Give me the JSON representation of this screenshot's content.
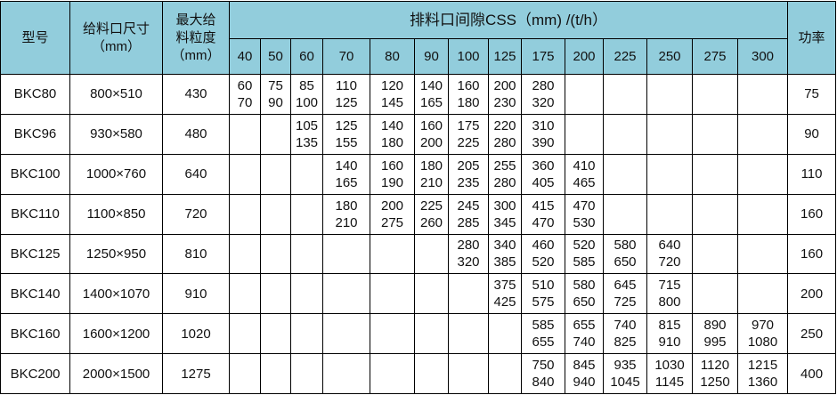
{
  "header": {
    "model": "型号",
    "feed_opening": "给料口尺寸",
    "feed_opening_unit": "（mm）",
    "max_feed": "最大给料粒度",
    "max_feed_unit": "（mm）",
    "css_caption": "排料口间隙CSS（mm) /(t/h）",
    "power": "功率",
    "css_values": [
      "40",
      "50",
      "60",
      "70",
      "80",
      "90",
      "100",
      "125",
      "175",
      "200",
      "225",
      "250",
      "275",
      "300"
    ]
  },
  "header_color": "#92CDDC",
  "rows": [
    {
      "model": "BKC80",
      "opening": "800×510",
      "max_feed": "430",
      "power": "75",
      "cells": [
        [
          "60",
          "70"
        ],
        [
          "75",
          "90"
        ],
        [
          "85",
          "100"
        ],
        [
          "110",
          "125"
        ],
        [
          "120",
          "145"
        ],
        [
          "140",
          "165"
        ],
        [
          "160",
          "180"
        ],
        [
          "200",
          "230"
        ],
        [
          "280",
          "320"
        ],
        null,
        null,
        null,
        null,
        null
      ]
    },
    {
      "model": "BKC96",
      "opening": "930×580",
      "max_feed": "480",
      "power": "90",
      "cells": [
        null,
        null,
        [
          "105",
          "135"
        ],
        [
          "125",
          "155"
        ],
        [
          "140",
          "180"
        ],
        [
          "160",
          "200"
        ],
        [
          "175",
          "225"
        ],
        [
          "220",
          "280"
        ],
        [
          "310",
          "390"
        ],
        null,
        null,
        null,
        null,
        null
      ]
    },
    {
      "model": "BKC100",
      "opening": "1000×760",
      "max_feed": "640",
      "power": "110",
      "cells": [
        null,
        null,
        null,
        [
          "140",
          "165"
        ],
        [
          "160",
          "190"
        ],
        [
          "180",
          "210"
        ],
        [
          "205",
          "235"
        ],
        [
          "255",
          "280"
        ],
        [
          "360",
          "405"
        ],
        [
          "410",
          "465"
        ],
        null,
        null,
        null,
        null
      ]
    },
    {
      "model": "BKC110",
      "opening": "1100×850",
      "max_feed": "720",
      "power": "160",
      "cells": [
        null,
        null,
        null,
        [
          "180",
          "210"
        ],
        [
          "200",
          "275"
        ],
        [
          "225",
          "260"
        ],
        [
          "245",
          "285"
        ],
        [
          "300",
          "345"
        ],
        [
          "415",
          "470"
        ],
        [
          "470",
          "530"
        ],
        null,
        null,
        null,
        null
      ]
    },
    {
      "model": "BKC125",
      "opening": "1250×950",
      "max_feed": "810",
      "power": "160",
      "cells": [
        null,
        null,
        null,
        null,
        null,
        null,
        [
          "280",
          "320"
        ],
        [
          "340",
          "385"
        ],
        [
          "460",
          "520"
        ],
        [
          "520",
          "585"
        ],
        [
          "580",
          "650"
        ],
        [
          "640",
          "720"
        ],
        null,
        null
      ]
    },
    {
      "model": "BKC140",
      "opening": "1400×1070",
      "max_feed": "910",
      "power": "200",
      "cells": [
        null,
        null,
        null,
        null,
        null,
        null,
        null,
        [
          "375",
          "425"
        ],
        [
          "510",
          "575"
        ],
        [
          "580",
          "650"
        ],
        [
          "645",
          "725"
        ],
        [
          "715",
          "800"
        ],
        null,
        null
      ]
    },
    {
      "model": "BKC160",
      "opening": "1600×1200",
      "max_feed": "1020",
      "power": "250",
      "cells": [
        null,
        null,
        null,
        null,
        null,
        null,
        null,
        null,
        [
          "585",
          "655"
        ],
        [
          "655",
          "740"
        ],
        [
          "740",
          "825"
        ],
        [
          "815",
          "910"
        ],
        [
          "890",
          "995"
        ],
        [
          "970",
          "1080"
        ]
      ]
    },
    {
      "model": "BKC200",
      "opening": "2000×1500",
      "max_feed": "1275",
      "power": "400",
      "cells": [
        null,
        null,
        null,
        null,
        null,
        null,
        null,
        null,
        [
          "750",
          "840"
        ],
        [
          "845",
          "940"
        ],
        [
          "935",
          "1045"
        ],
        [
          "1030",
          "1145"
        ],
        [
          "1120",
          "1250"
        ],
        [
          "1215",
          "1360"
        ]
      ]
    }
  ]
}
